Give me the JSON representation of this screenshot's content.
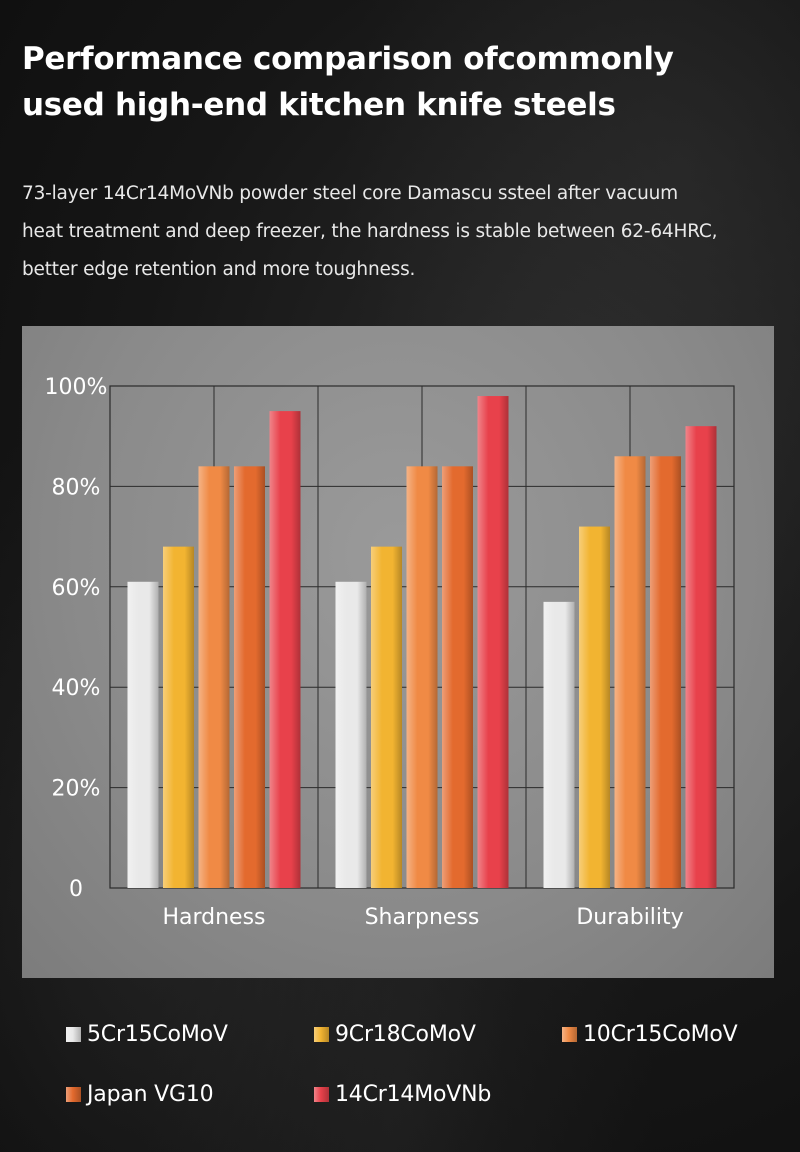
{
  "header": {
    "title_line1": "Performance comparison ofcommonly",
    "title_line2": "used high-end kitchen knife steels"
  },
  "description": {
    "line1": "73-layer 14Cr14MoVNb powder steel core Damascu ssteel after vacuum",
    "line2": "heat treatment and deep freezer, the hardness is stable between 62-64HRC,",
    "line3": "better edge retention and more toughness."
  },
  "chart_data": {
    "type": "bar",
    "categories": [
      "Hardness",
      "Sharpness",
      "Durability"
    ],
    "series": [
      {
        "name": "5Cr15CoMoV",
        "values": [
          61,
          61,
          57
        ],
        "color": "#e9e9e9"
      },
      {
        "name": "9Cr18CoMoV",
        "values": [
          68,
          68,
          72
        ],
        "color": "#f2b431"
      },
      {
        "name": "10Cr15CoMoV",
        "values": [
          84,
          84,
          86
        ],
        "color": "#f08a45"
      },
      {
        "name": "Japan VG10",
        "values": [
          84,
          84,
          86
        ],
        "color": "#e36a2e"
      },
      {
        "name": "14Cr14MoVNb",
        "values": [
          95,
          98,
          92
        ],
        "color": "#e8414b"
      }
    ],
    "y_ticks": [
      "0",
      "20%",
      "40%",
      "60%",
      "80%",
      "100%"
    ],
    "ylim": [
      0,
      100
    ],
    "grid": true,
    "legend_position": "bottom"
  }
}
